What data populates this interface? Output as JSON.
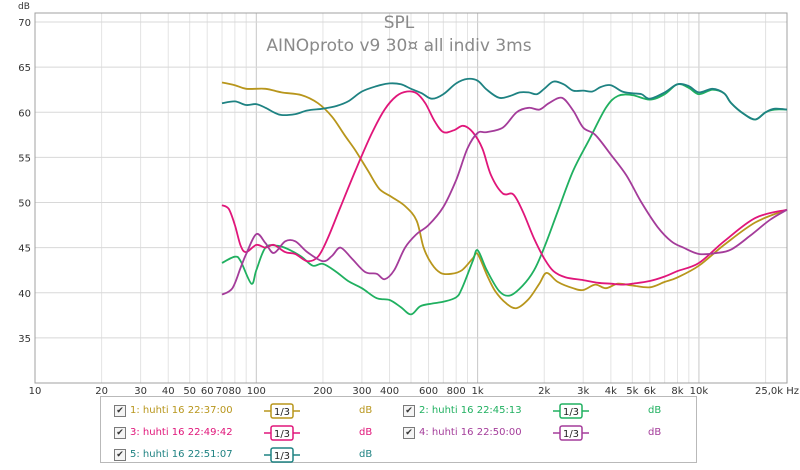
{
  "chart_data": {
    "type": "line",
    "title": "SPL",
    "subtitle": "AINOproto v9 30¤ all indiv 3ms",
    "ylabel": "dB",
    "xlabel": "",
    "x_scale": "log",
    "xlim": [
      10,
      25000
    ],
    "ylim": [
      30,
      71
    ],
    "grid": true,
    "y_ticks": [
      35,
      40,
      45,
      50,
      55,
      60,
      65,
      70
    ],
    "x_tick_labels": [
      "10",
      "20",
      "30",
      "40",
      "50",
      "60",
      "70",
      "80",
      "100",
      "200",
      "300",
      "400",
      "600",
      "800",
      "1k",
      "2k",
      "3k",
      "4k",
      "5k",
      "6k",
      "8k",
      "10k",
      "25,0k Hz"
    ],
    "series": [
      {
        "name": "1: huhti 16 22:37:00",
        "color": "#b8961c",
        "points": [
          [
            70,
            63.3
          ],
          [
            80,
            63
          ],
          [
            90,
            62.6
          ],
          [
            110,
            62.6
          ],
          [
            130,
            62.2
          ],
          [
            160,
            61.9
          ],
          [
            190,
            61
          ],
          [
            220,
            59.5
          ],
          [
            250,
            57.5
          ],
          [
            280,
            55.8
          ],
          [
            320,
            53.5
          ],
          [
            360,
            51.5
          ],
          [
            410,
            50.6
          ],
          [
            470,
            49.6
          ],
          [
            530,
            48
          ],
          [
            570,
            45
          ],
          [
            620,
            43.2
          ],
          [
            680,
            42.2
          ],
          [
            760,
            42.1
          ],
          [
            850,
            42.5
          ],
          [
            950,
            43.8
          ],
          [
            1000,
            44.3
          ],
          [
            1100,
            42
          ],
          [
            1200,
            40.2
          ],
          [
            1350,
            38.8
          ],
          [
            1500,
            38.3
          ],
          [
            1700,
            39.3
          ],
          [
            1900,
            41
          ],
          [
            2050,
            42.2
          ],
          [
            2300,
            41.2
          ],
          [
            2700,
            40.5
          ],
          [
            3000,
            40.3
          ],
          [
            3400,
            40.9
          ],
          [
            3800,
            40.5
          ],
          [
            4300,
            41
          ],
          [
            5000,
            40.8
          ],
          [
            6000,
            40.6
          ],
          [
            7000,
            41.2
          ],
          [
            8000,
            41.7
          ],
          [
            10000,
            43
          ],
          [
            13000,
            45.3
          ],
          [
            18000,
            47.8
          ],
          [
            25000,
            49.2
          ]
        ]
      },
      {
        "name": "2: huhti 16 22:45:13",
        "color": "#20b060",
        "points": [
          [
            70,
            43.3
          ],
          [
            80,
            44
          ],
          [
            85,
            43.5
          ],
          [
            95,
            41
          ],
          [
            100,
            42.5
          ],
          [
            110,
            45
          ],
          [
            125,
            45.2
          ],
          [
            140,
            44.8
          ],
          [
            160,
            44
          ],
          [
            180,
            43
          ],
          [
            200,
            43.2
          ],
          [
            230,
            42.3
          ],
          [
            260,
            41.3
          ],
          [
            300,
            40.5
          ],
          [
            350,
            39.4
          ],
          [
            400,
            39.2
          ],
          [
            450,
            38.4
          ],
          [
            500,
            37.6
          ],
          [
            550,
            38.5
          ],
          [
            620,
            38.8
          ],
          [
            700,
            39
          ],
          [
            800,
            39.5
          ],
          [
            850,
            40.5
          ],
          [
            950,
            43.5
          ],
          [
            1000,
            44.7
          ],
          [
            1100,
            42.5
          ],
          [
            1250,
            40.2
          ],
          [
            1400,
            39.7
          ],
          [
            1600,
            40.8
          ],
          [
            1800,
            42.5
          ],
          [
            2000,
            45
          ],
          [
            2300,
            49
          ],
          [
            2700,
            53.5
          ],
          [
            3200,
            57
          ],
          [
            3800,
            60.5
          ],
          [
            4300,
            61.8
          ],
          [
            5000,
            61.9
          ],
          [
            6000,
            61.4
          ],
          [
            7000,
            62
          ],
          [
            8000,
            63.1
          ],
          [
            9000,
            62.7
          ],
          [
            10000,
            62
          ],
          [
            11500,
            62.5
          ],
          [
            13000,
            62.1
          ],
          [
            14000,
            61
          ],
          [
            16000,
            59.8
          ],
          [
            18000,
            59.2
          ],
          [
            20000,
            60
          ],
          [
            22000,
            60.3
          ],
          [
            25000,
            60.3
          ]
        ]
      },
      {
        "name": "3: huhti 16 22:49:42",
        "color": "#e0167a",
        "points": [
          [
            70,
            49.7
          ],
          [
            75,
            49.3
          ],
          [
            80,
            47.5
          ],
          [
            85,
            45.2
          ],
          [
            90,
            44.5
          ],
          [
            100,
            45.3
          ],
          [
            110,
            45
          ],
          [
            120,
            45.3
          ],
          [
            135,
            44.5
          ],
          [
            150,
            44.3
          ],
          [
            170,
            43.5
          ],
          [
            190,
            44
          ],
          [
            210,
            46
          ],
          [
            240,
            49.5
          ],
          [
            280,
            53.5
          ],
          [
            330,
            57.5
          ],
          [
            380,
            60.3
          ],
          [
            430,
            61.8
          ],
          [
            480,
            62.3
          ],
          [
            530,
            62.1
          ],
          [
            580,
            61
          ],
          [
            640,
            59
          ],
          [
            700,
            57.8
          ],
          [
            780,
            58
          ],
          [
            860,
            58.5
          ],
          [
            950,
            57.8
          ],
          [
            1050,
            56
          ],
          [
            1150,
            53
          ],
          [
            1300,
            51
          ],
          [
            1450,
            50.9
          ],
          [
            1600,
            49
          ],
          [
            1800,
            46
          ],
          [
            2000,
            43.8
          ],
          [
            2200,
            42.4
          ],
          [
            2500,
            41.7
          ],
          [
            3000,
            41.4
          ],
          [
            3500,
            41.1
          ],
          [
            4000,
            41
          ],
          [
            4500,
            40.9
          ],
          [
            5000,
            41
          ],
          [
            6000,
            41.3
          ],
          [
            7000,
            41.8
          ],
          [
            8000,
            42.4
          ],
          [
            10000,
            43.3
          ],
          [
            13000,
            45.7
          ],
          [
            18000,
            48.3
          ],
          [
            25000,
            49.2
          ]
        ]
      },
      {
        "name": "4: huhti 16 22:50:00",
        "color": "#a43c9a",
        "points": [
          [
            70,
            39.8
          ],
          [
            78,
            40.5
          ],
          [
            85,
            42.8
          ],
          [
            90,
            44.3
          ],
          [
            100,
            46.5
          ],
          [
            110,
            45.5
          ],
          [
            120,
            44.4
          ],
          [
            135,
            45.7
          ],
          [
            150,
            45.7
          ],
          [
            170,
            44.5
          ],
          [
            200,
            43.5
          ],
          [
            220,
            44.1
          ],
          [
            240,
            45
          ],
          [
            270,
            43.8
          ],
          [
            310,
            42.3
          ],
          [
            350,
            42.1
          ],
          [
            380,
            41.5
          ],
          [
            420,
            42.5
          ],
          [
            470,
            45
          ],
          [
            530,
            46.5
          ],
          [
            600,
            47.5
          ],
          [
            700,
            49.5
          ],
          [
            800,
            52.5
          ],
          [
            900,
            56
          ],
          [
            1000,
            57.7
          ],
          [
            1100,
            57.8
          ],
          [
            1300,
            58.3
          ],
          [
            1500,
            60
          ],
          [
            1700,
            60.5
          ],
          [
            1900,
            60.3
          ],
          [
            2100,
            61
          ],
          [
            2400,
            61.6
          ],
          [
            2700,
            60.2
          ],
          [
            3000,
            58.3
          ],
          [
            3400,
            57.5
          ],
          [
            4000,
            55.3
          ],
          [
            4700,
            53
          ],
          [
            5500,
            50
          ],
          [
            6500,
            47.3
          ],
          [
            7500,
            45.7
          ],
          [
            8500,
            45
          ],
          [
            10000,
            44.3
          ],
          [
            12000,
            44.4
          ],
          [
            14000,
            44.8
          ],
          [
            17000,
            46.3
          ],
          [
            21000,
            48.1
          ],
          [
            25000,
            49.2
          ]
        ]
      },
      {
        "name": "5: huhti 16 22:51:07",
        "color": "#1e8282",
        "points": [
          [
            70,
            61
          ],
          [
            80,
            61.2
          ],
          [
            90,
            60.8
          ],
          [
            100,
            60.9
          ],
          [
            110,
            60.5
          ],
          [
            120,
            60
          ],
          [
            130,
            59.7
          ],
          [
            150,
            59.8
          ],
          [
            170,
            60.2
          ],
          [
            200,
            60.4
          ],
          [
            230,
            60.7
          ],
          [
            260,
            61.2
          ],
          [
            300,
            62.3
          ],
          [
            350,
            62.9
          ],
          [
            400,
            63.2
          ],
          [
            450,
            63.1
          ],
          [
            500,
            62.6
          ],
          [
            560,
            62.1
          ],
          [
            620,
            61.5
          ],
          [
            700,
            62
          ],
          [
            800,
            63.2
          ],
          [
            900,
            63.7
          ],
          [
            1000,
            63.5
          ],
          [
            1100,
            62.5
          ],
          [
            1250,
            61.6
          ],
          [
            1400,
            61.8
          ],
          [
            1550,
            62.2
          ],
          [
            1700,
            62.2
          ],
          [
            1850,
            62
          ],
          [
            2000,
            62.6
          ],
          [
            2200,
            63.4
          ],
          [
            2450,
            63.1
          ],
          [
            2700,
            62.4
          ],
          [
            3000,
            62.4
          ],
          [
            3300,
            62.3
          ],
          [
            3600,
            62.8
          ],
          [
            4000,
            63
          ],
          [
            4500,
            62.3
          ],
          [
            5000,
            62.1
          ],
          [
            5500,
            62
          ],
          [
            6000,
            61.5
          ],
          [
            7000,
            62.2
          ],
          [
            8000,
            63.1
          ],
          [
            9000,
            62.9
          ],
          [
            10000,
            62.2
          ],
          [
            11500,
            62.6
          ],
          [
            13000,
            62.1
          ],
          [
            14000,
            61
          ],
          [
            16000,
            59.8
          ],
          [
            18000,
            59.2
          ],
          [
            20000,
            60
          ],
          [
            22000,
            60.4
          ],
          [
            25000,
            60.3
          ]
        ]
      }
    ]
  },
  "legend": {
    "smoothing_label": "1/3",
    "unit_label": "dB",
    "checked_mark": "✔"
  }
}
